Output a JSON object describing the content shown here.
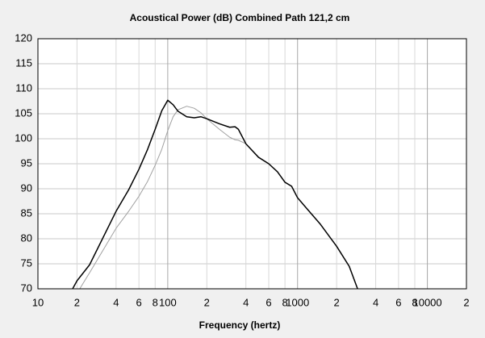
{
  "chart_data": {
    "type": "line",
    "title": "Acoustical Power (dB)   Combined   Path 121,2 cm",
    "x_label": "Frequency (hertz)",
    "x": [
      18.5,
      20,
      21,
      25,
      40,
      50,
      60,
      70,
      80,
      90,
      100,
      110,
      120,
      140,
      160,
      180,
      200,
      250,
      300,
      330,
      350,
      400,
      500,
      600,
      700,
      800,
      900,
      1000,
      1200,
      1500,
      2000,
      2500,
      2900
    ],
    "series": [
      {
        "color": "#000000",
        "values": [
          70,
          71.6,
          72.3,
          74.8,
          85.5,
          89.8,
          93.9,
          97.9,
          101.9,
          105.6,
          107.7,
          106.8,
          105.5,
          104.4,
          104.2,
          104.4,
          104,
          103,
          102.3,
          102.4,
          101.9,
          99,
          96.3,
          95,
          93.4,
          91.3,
          90.5,
          88.2,
          85.8,
          82.9,
          78.5,
          74.5,
          70
        ]
      },
      {
        "color": "#a0a0a0",
        "values": [
          null,
          null,
          70,
          73.2,
          82.1,
          85.5,
          88.5,
          91.5,
          94.7,
          97.9,
          101.6,
          104.4,
          105.8,
          106.5,
          106.1,
          105.2,
          104,
          101.9,
          100.3,
          99.8,
          99.7,
          99,
          96.3,
          95,
          93.4,
          91.3,
          90.5,
          88.2,
          85.8,
          82.9,
          78.5,
          74.5,
          70
        ]
      }
    ],
    "xscale": "log",
    "xlim": [
      10,
      20000
    ],
    "xticks": [
      10,
      {
        "value": 20,
        "label": "2"
      },
      {
        "value": 40,
        "label": "4"
      },
      {
        "value": 60,
        "label": "6"
      },
      {
        "value": 80,
        "label": "8"
      },
      100,
      {
        "value": 200,
        "label": "2"
      },
      {
        "value": 400,
        "label": "4"
      },
      {
        "value": 600,
        "label": "6"
      },
      {
        "value": 800,
        "label": "8"
      },
      1000,
      {
        "value": 2000,
        "label": "2"
      },
      {
        "value": 4000,
        "label": "4"
      },
      {
        "value": 6000,
        "label": "6"
      },
      {
        "value": 8000,
        "label": "8"
      },
      10000,
      {
        "value": 20000,
        "label": "2"
      }
    ],
    "ylim": [
      70,
      120
    ],
    "yticks": [
      70,
      75,
      80,
      85,
      90,
      95,
      100,
      105,
      110,
      115,
      120
    ],
    "grid": true
  }
}
